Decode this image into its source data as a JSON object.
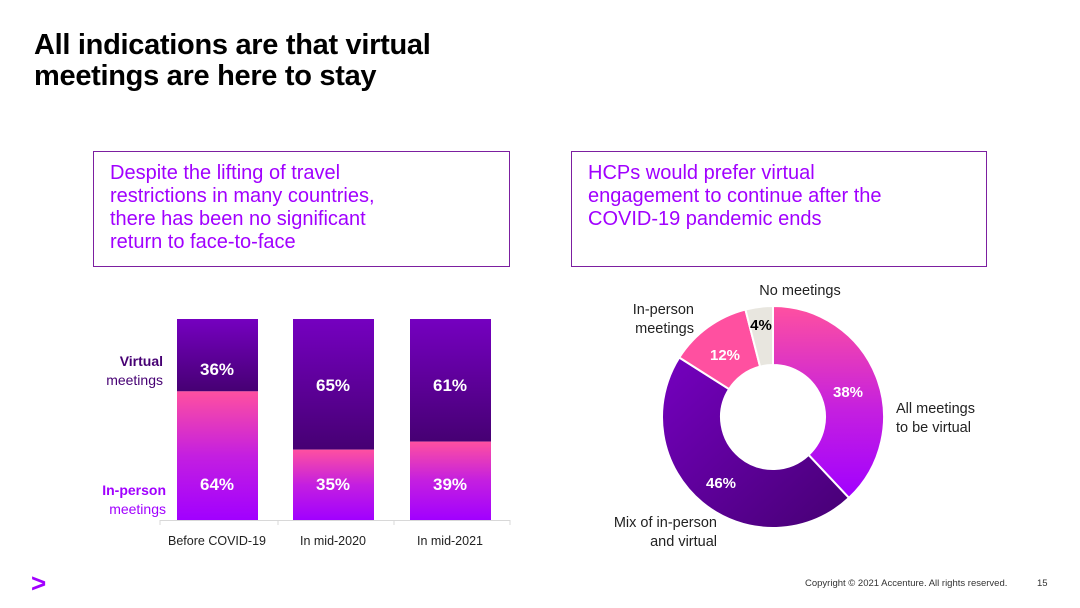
{
  "slide": {
    "title_line1": "All indications are that virtual",
    "title_line2": "meetings are here to stay",
    "left_box": [
      "Despite the lifting of travel",
      "restrictions in many countries,",
      "there has been no significant",
      "return to face-to-face"
    ],
    "right_box": [
      "HCPs would prefer virtual",
      "engagement to continue after the",
      "COVID-19 pandemic ends"
    ],
    "copyright": "Copyright © 2021 Accenture. All rights reserved.",
    "page_number": "15",
    "logo_glyph": ">"
  },
  "chart_data": [
    {
      "type": "bar",
      "stacked": true,
      "categories": [
        "Before COVID-19",
        "In mid-2020",
        "In mid-2021"
      ],
      "series": [
        {
          "name": "In-person meetings",
          "label_bold": "In-person",
          "label_rest": "meetings",
          "values": [
            64,
            35,
            39
          ],
          "data_labels": [
            "64%",
            "35%",
            "39%"
          ],
          "color": "#a100ff"
        },
        {
          "name": "Virtual meetings",
          "label_bold": "Virtual",
          "label_rest": "meetings",
          "values": [
            36,
            65,
            61
          ],
          "data_labels": [
            "36%",
            "65%",
            "61%"
          ],
          "color": "#460073"
        }
      ],
      "ylim": [
        0,
        100
      ],
      "grid": false,
      "legend": "left"
    },
    {
      "type": "pie",
      "donut": true,
      "slices": [
        {
          "label_lines": [
            "All meetings",
            "to be virtual"
          ],
          "value": 38,
          "data_label": "38%",
          "color": "#a100ff"
        },
        {
          "label_lines": [
            "Mix of in-person",
            "and virtual"
          ],
          "value": 46,
          "data_label": "46%",
          "color": "#460073"
        },
        {
          "label_lines": [
            "In-person",
            "meetings"
          ],
          "value": 12,
          "data_label": "12%",
          "color": "#ff50a0"
        },
        {
          "label_lines": [
            "No meetings"
          ],
          "value": 4,
          "data_label": "4%",
          "color": "#e8e6df"
        }
      ]
    }
  ]
}
